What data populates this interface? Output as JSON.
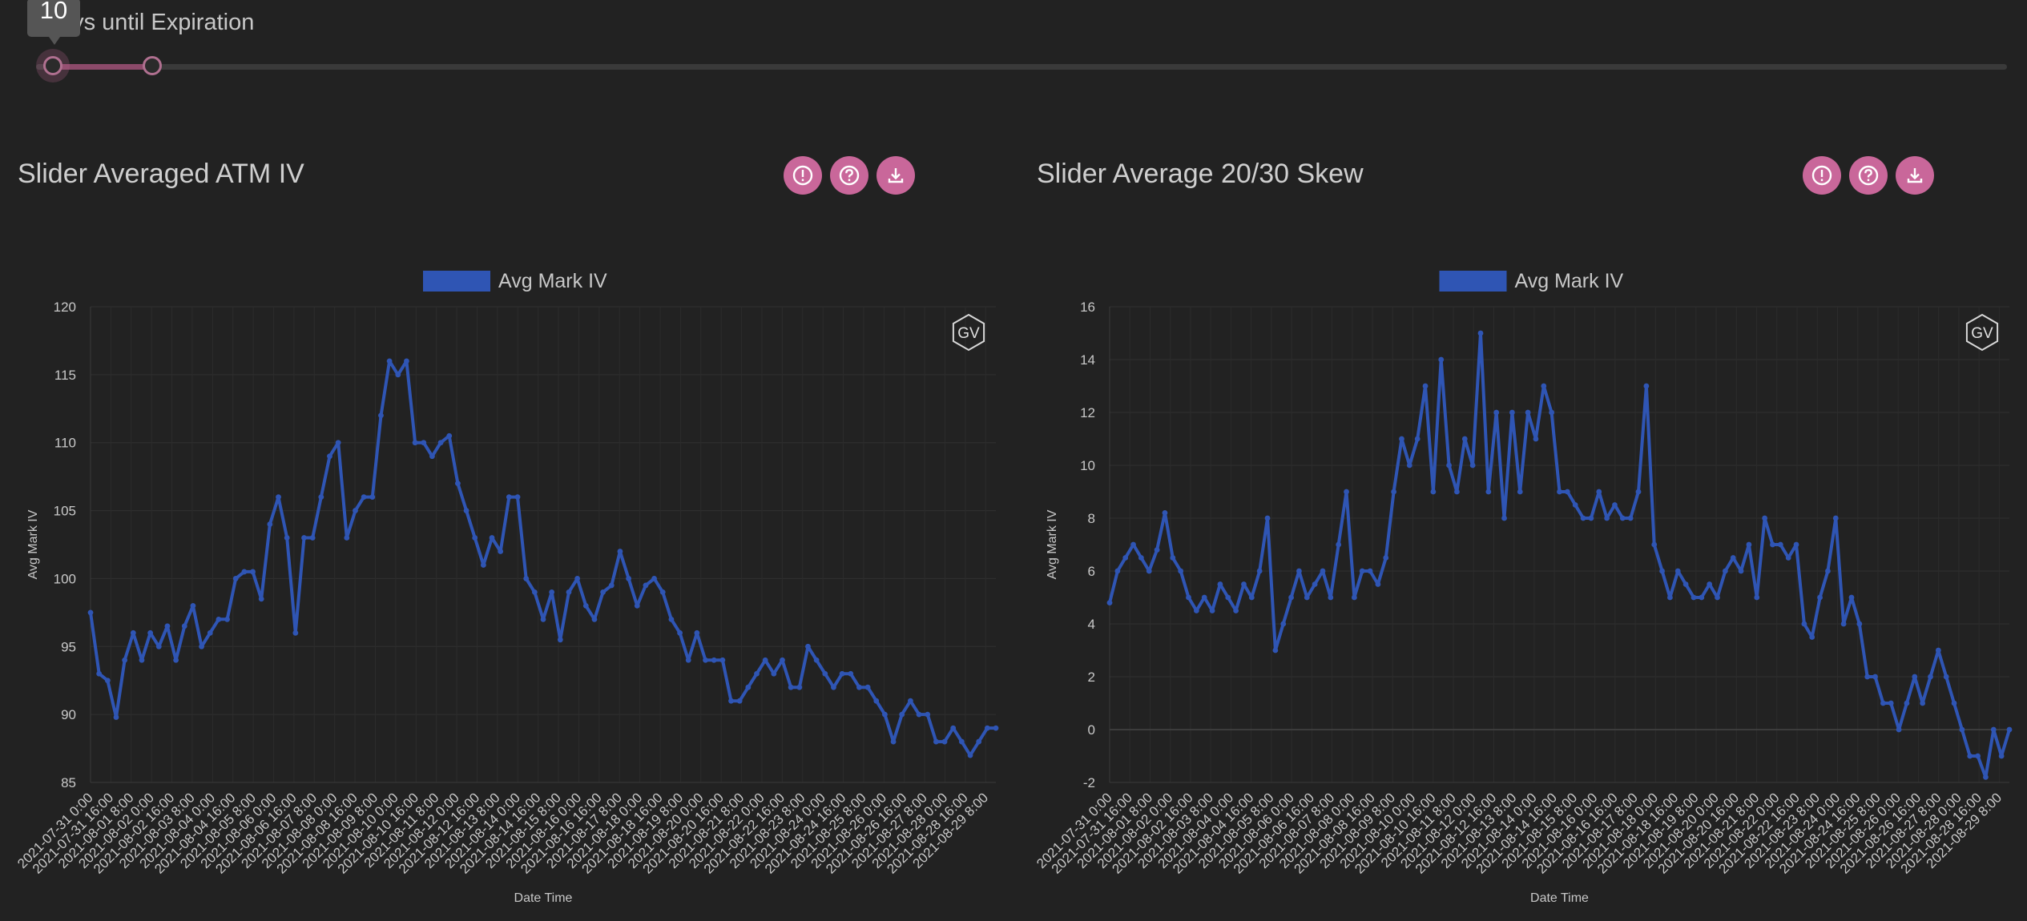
{
  "slider": {
    "label": "Days until Expiration",
    "tooltip_value": "10",
    "low_value": 10,
    "accent_color": "#b07090"
  },
  "panels": [
    {
      "title": "Slider Averaged ATM IV",
      "buttons": [
        "info-icon",
        "help-icon",
        "download-icon"
      ],
      "badge": "GV"
    },
    {
      "title": "Slider Average 20/30 Skew",
      "buttons": [
        "info-icon",
        "help-icon",
        "download-icon"
      ],
      "badge": "GV"
    }
  ],
  "colors": {
    "series": "#2f55b4",
    "button": "#c9679a",
    "background": "#222222"
  },
  "chart_data": [
    {
      "type": "line",
      "title": "",
      "legend": "Avg Mark IV",
      "legend_position": "top-center",
      "xlabel": "Date Time",
      "ylabel": "Avg Mark IV",
      "ylim": [
        85,
        120
      ],
      "yticks": [
        85,
        90,
        95,
        100,
        105,
        110,
        115,
        120
      ],
      "grid": true,
      "x_ticks": [
        "2021-07-31 0:00",
        "2021-07-31 16:00",
        "2021-08-01 8:00",
        "2021-08-02 0:00",
        "2021-08-02 16:00",
        "2021-08-03 8:00",
        "2021-08-04 0:00",
        "2021-08-04 16:00",
        "2021-08-05 8:00",
        "2021-08-06 0:00",
        "2021-08-06 16:00",
        "2021-08-07 8:00",
        "2021-08-08 0:00",
        "2021-08-08 16:00",
        "2021-08-09 8:00",
        "2021-08-10 0:00",
        "2021-08-10 16:00",
        "2021-08-11 8:00",
        "2021-08-12 0:00",
        "2021-08-12 16:00",
        "2021-08-13 8:00",
        "2021-08-14 0:00",
        "2021-08-14 16:00",
        "2021-08-15 8:00",
        "2021-08-16 0:00",
        "2021-08-16 16:00",
        "2021-08-17 8:00",
        "2021-08-18 0:00",
        "2021-08-18 16:00",
        "2021-08-19 8:00",
        "2021-08-20 0:00",
        "2021-08-20 16:00",
        "2021-08-21 8:00",
        "2021-08-22 0:00",
        "2021-08-22 16:00",
        "2021-08-23 8:00",
        "2021-08-24 0:00",
        "2021-08-24 16:00",
        "2021-08-25 8:00",
        "2021-08-26 0:00",
        "2021-08-26 16:00",
        "2021-08-27 8:00",
        "2021-08-28 0:00",
        "2021-08-28 16:00",
        "2021-08-29 8:00"
      ],
      "series": [
        {
          "name": "Avg Mark IV",
          "values": [
            97.5,
            93,
            92.5,
            89.8,
            94,
            96,
            94,
            96,
            95,
            96.5,
            94,
            96.5,
            98,
            95,
            96,
            97,
            97,
            100,
            100.5,
            100.5,
            98.5,
            104,
            106,
            103,
            96,
            103,
            103,
            106,
            109,
            110,
            103,
            105,
            106,
            106,
            112,
            116,
            115,
            116,
            110,
            110,
            109,
            110,
            110.5,
            107,
            105,
            103,
            101,
            103,
            102,
            106,
            106,
            100,
            99,
            97,
            99,
            95.5,
            99,
            100,
            98,
            97,
            99,
            99.5,
            102,
            100,
            98,
            99.5,
            100,
            99,
            97,
            96,
            94,
            96,
            94,
            94,
            94,
            91,
            91,
            92,
            93,
            94,
            93,
            94,
            92,
            92,
            95,
            94,
            93,
            92,
            93,
            93,
            92,
            92,
            91,
            90,
            88,
            90,
            91,
            90,
            90,
            88,
            88,
            89,
            88,
            87,
            88,
            89,
            89
          ]
        }
      ]
    },
    {
      "type": "line",
      "title": "",
      "legend": "Avg Mark IV",
      "legend_position": "top-center",
      "xlabel": "Date Time",
      "ylabel": "Avg Mark IV",
      "ylim": [
        -2,
        16
      ],
      "yticks": [
        -2,
        0,
        2,
        4,
        6,
        8,
        10,
        12,
        14,
        16
      ],
      "grid": true,
      "x_ticks": [
        "2021-07-31 0:00",
        "2021-07-31 16:00",
        "2021-08-01 8:00",
        "2021-08-02 0:00",
        "2021-08-02 16:00",
        "2021-08-03 8:00",
        "2021-08-04 0:00",
        "2021-08-04 16:00",
        "2021-08-05 8:00",
        "2021-08-06 0:00",
        "2021-08-06 16:00",
        "2021-08-07 8:00",
        "2021-08-08 0:00",
        "2021-08-08 16:00",
        "2021-08-09 8:00",
        "2021-08-10 0:00",
        "2021-08-10 16:00",
        "2021-08-11 8:00",
        "2021-08-12 0:00",
        "2021-08-12 16:00",
        "2021-08-13 8:00",
        "2021-08-14 0:00",
        "2021-08-14 16:00",
        "2021-08-15 8:00",
        "2021-08-16 0:00",
        "2021-08-16 16:00",
        "2021-08-17 8:00",
        "2021-08-18 0:00",
        "2021-08-18 16:00",
        "2021-08-19 8:00",
        "2021-08-20 0:00",
        "2021-08-20 16:00",
        "2021-08-21 8:00",
        "2021-08-22 0:00",
        "2021-08-22 16:00",
        "2021-08-23 8:00",
        "2021-08-24 0:00",
        "2021-08-24 16:00",
        "2021-08-25 8:00",
        "2021-08-26 0:00",
        "2021-08-26 16:00",
        "2021-08-27 8:00",
        "2021-08-28 0:00",
        "2021-08-28 16:00",
        "2021-08-29 8:00"
      ],
      "series": [
        {
          "name": "Avg Mark IV",
          "values": [
            4.8,
            6,
            6.5,
            7,
            6.5,
            6,
            6.8,
            8.2,
            6.5,
            6,
            5,
            4.5,
            5,
            4.5,
            5.5,
            5,
            4.5,
            5.5,
            5,
            6,
            8,
            3,
            4,
            5,
            6,
            5,
            5.5,
            6,
            5,
            7,
            9,
            5,
            6,
            6,
            5.5,
            6.5,
            9,
            11,
            10,
            11,
            13,
            9,
            14,
            10,
            9,
            11,
            10,
            15,
            9,
            12,
            8,
            12,
            9,
            12,
            11,
            13,
            12,
            9,
            9,
            8.5,
            8,
            8,
            9,
            8,
            8.5,
            8,
            8,
            9,
            13,
            7,
            6,
            5,
            6,
            5.5,
            5,
            5,
            5.5,
            5,
            6,
            6.5,
            6,
            7,
            5,
            8,
            7,
            7,
            6.5,
            7,
            4,
            3.5,
            5,
            6,
            8,
            4,
            5,
            4,
            2,
            2,
            1,
            1,
            0,
            1,
            2,
            1,
            2,
            3,
            2,
            1,
            0,
            -1,
            -1,
            -1.8,
            0,
            -1,
            0
          ]
        }
      ]
    }
  ]
}
